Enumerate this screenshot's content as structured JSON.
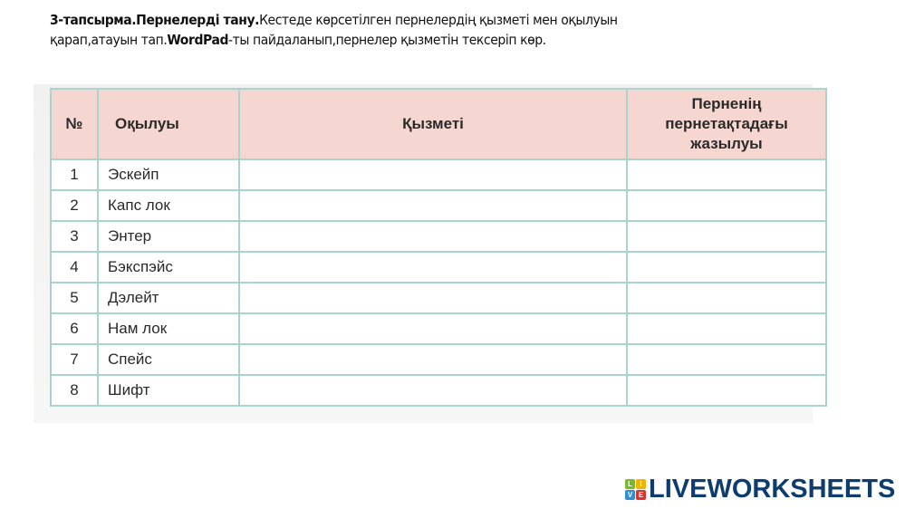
{
  "instruction": {
    "bold1": "3-тапсырма.Пернелерді тану.",
    "text1": "Кестеде көрсетілген пернелердің қызметі мен оқылуын қарап,атауын тап.",
    "bold2": "WordPad",
    "text2": "-ты пайдаланып,пернелер қызметін тексеріп көр."
  },
  "table": {
    "headers": [
      "№",
      "Оқылуы",
      "Қызметі",
      "Пернenің"
    ],
    "header_last_lines": [
      "Пернеің",
      "пернетақтадағы",
      "жазылуы"
    ],
    "rows": [
      {
        "num": "1",
        "name": "Эскейп"
      },
      {
        "num": "2",
        "name": "Капс лок"
      },
      {
        "num": "3",
        "name": "Энтер"
      },
      {
        "num": "4",
        "name": "Бэкспэйс"
      },
      {
        "num": "5",
        "name": "Дэлейт"
      },
      {
        "num": "6",
        "name": "Нам лок"
      },
      {
        "num": "7",
        "name": "Спейс"
      },
      {
        "num": "8",
        "name": "Шифт"
      }
    ]
  },
  "logo": {
    "text": "LIVEWORKSHEETS",
    "tiles": [
      "L",
      "I",
      "V",
      "E"
    ],
    "colors": [
      "#7ab833",
      "#f2b400",
      "#2f8fd6",
      "#e0322d"
    ],
    "text_color": "#0d3d6e"
  }
}
